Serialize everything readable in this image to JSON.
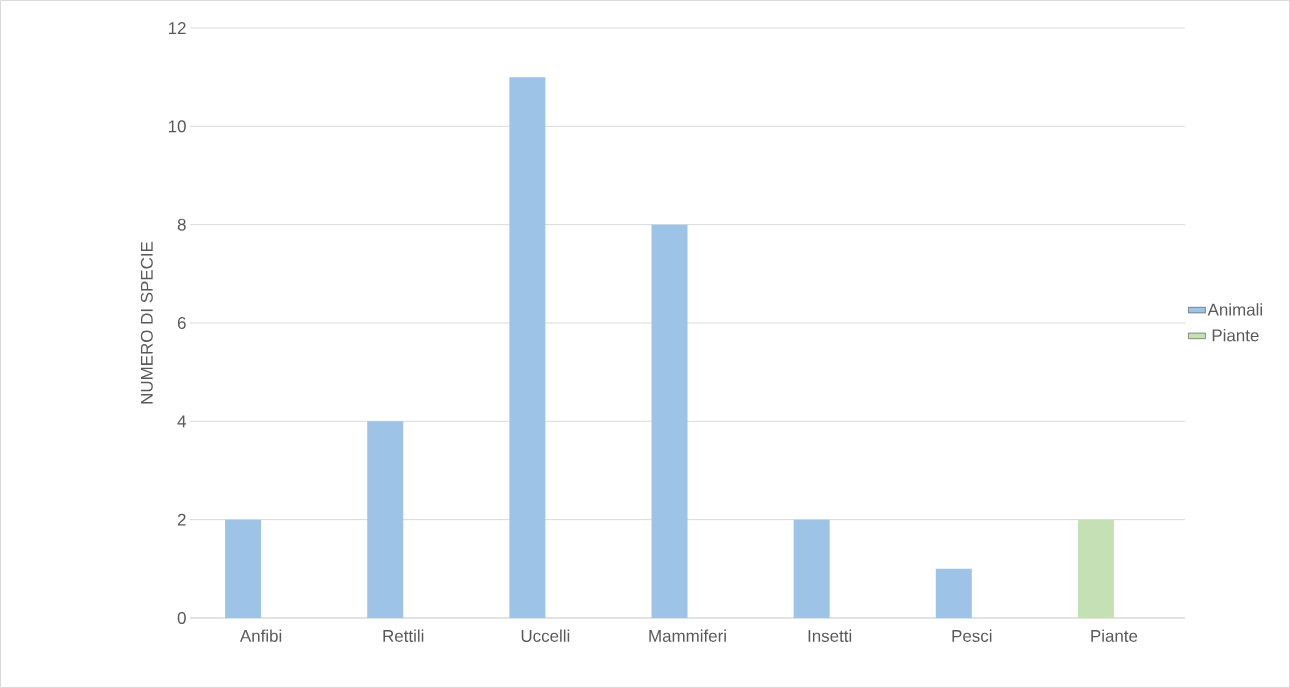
{
  "chart_data": {
    "type": "bar",
    "ylabel": "NUMERO DI SPECIE",
    "categories": [
      "Anfibi",
      "Rettili",
      "Uccelli",
      "Mammiferi",
      "Insetti",
      "Pesci",
      "Piante"
    ],
    "series": [
      {
        "name": "Animali",
        "color": "#9dc3e6",
        "values": [
          2,
          4,
          11,
          8,
          2,
          1,
          null
        ]
      },
      {
        "name": "Piante",
        "color": "#c5e0b4",
        "values": [
          null,
          null,
          null,
          null,
          null,
          null,
          2
        ]
      }
    ],
    "ylim": [
      0,
      12
    ],
    "yticks": [
      0,
      2,
      4,
      6,
      8,
      10,
      12
    ],
    "grid": "y",
    "legend": "right"
  }
}
